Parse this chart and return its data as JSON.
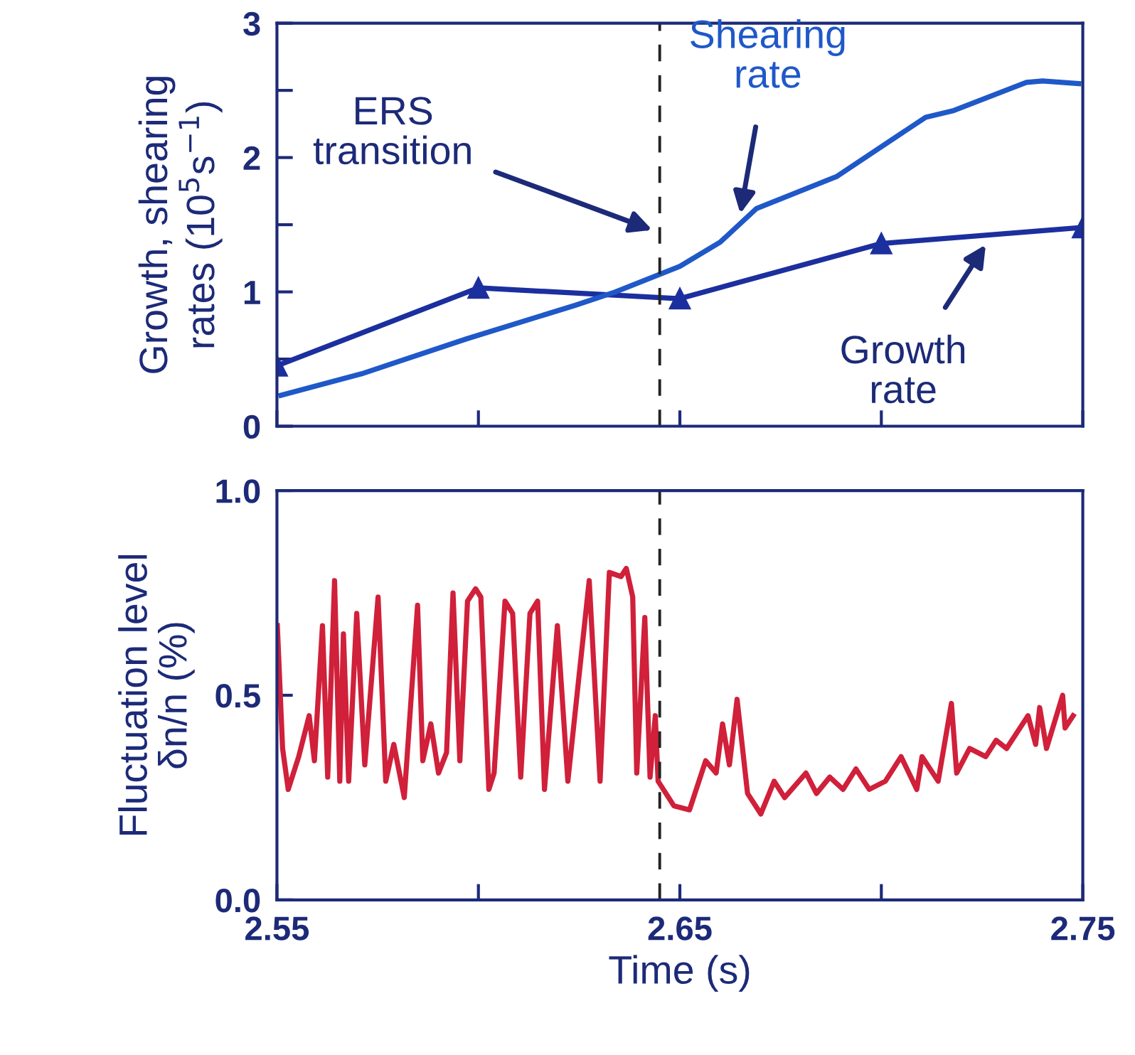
{
  "chart_data": [
    {
      "type": "line",
      "ylabel": "Growth, shearing\nrates (10$^{5}$s$^{−1}$)",
      "xlim": [
        2.55,
        2.75
      ],
      "ylim": [
        0,
        3
      ],
      "xticks": [
        {
          "value": 2.55,
          "label": null
        },
        {
          "value": 2.6,
          "label": null
        },
        {
          "value": 2.65,
          "label": null
        },
        {
          "value": 2.7,
          "label": null
        },
        {
          "value": 2.75,
          "label": null
        }
      ],
      "yticks": [
        0,
        {
          "value": 0.5,
          "label": null
        },
        1,
        {
          "value": 1.5,
          "label": null
        },
        2,
        {
          "value": 2.5,
          "label": null
        },
        3
      ],
      "tick_labels": "y",
      "grid": false,
      "legend": false,
      "series": [
        {
          "name": "Growth\nrate",
          "color": "#1c2f9e",
          "marker": "triangle",
          "x": [
            2.55,
            2.6,
            2.65,
            2.7,
            2.75
          ],
          "values": [
            0.45,
            1.03,
            0.95,
            1.36,
            1.48
          ]
        },
        {
          "name": "Shearing\nrate",
          "color": "#1f58c8",
          "marker": "none",
          "x": [
            2.551,
            2.571,
            2.597,
            2.624,
            2.634,
            2.65,
            2.66,
            2.669,
            2.689,
            2.711,
            2.718,
            2.736,
            2.74,
            2.749
          ],
          "values": [
            0.23,
            0.39,
            0.65,
            0.9,
            1.0,
            1.19,
            1.37,
            1.62,
            1.86,
            2.3,
            2.35,
            2.56,
            2.57,
            2.55
          ]
        }
      ],
      "annotations": [
        "ERS\ntransition"
      ],
      "ref_lines": [
        {
          "axis": "x",
          "value": 2.645,
          "line_style": "dashed",
          "color": "#222222"
        }
      ]
    },
    {
      "type": "line",
      "xlabel": "Time (s)",
      "ylabel": "Fluctuation level\nδn/n (%)",
      "xlim": [
        2.55,
        2.75
      ],
      "ylim": [
        0,
        1
      ],
      "xticks": [
        2.55,
        {
          "value": 2.6,
          "label": null
        },
        2.65,
        {
          "value": 2.7,
          "label": null
        },
        2.75
      ],
      "yticks": [
        {
          "value": 0,
          "label": "0.0"
        },
        0.5,
        {
          "value": 1,
          "label": "1.0"
        }
      ],
      "grid": false,
      "legend": false,
      "series": [
        {
          "color": "#d0203a",
          "marker": "none",
          "x": [
            2.5501,
            2.5514,
            2.5528,
            2.5554,
            2.558,
            2.5593,
            2.5613,
            2.5626,
            2.5643,
            2.5656,
            2.5665,
            2.5678,
            2.5698,
            2.5718,
            2.5751,
            2.577,
            2.579,
            2.5816,
            2.5849,
            2.5862,
            2.5882,
            2.5901,
            2.5921,
            2.5937,
            2.5954,
            2.5973,
            2.5993,
            2.6006,
            2.6026,
            2.6039,
            2.6066,
            2.6085,
            2.6105,
            2.6128,
            2.6147,
            2.6164,
            2.6196,
            2.6222,
            2.6249,
            2.6275,
            2.6302,
            2.6325,
            2.6354,
            2.6367,
            2.6383,
            2.6393,
            2.6413,
            2.6426,
            2.6439,
            2.6446,
            2.6485,
            2.6524,
            2.6564,
            2.659,
            2.6606,
            2.6623,
            2.6642,
            2.6668,
            2.6701,
            2.6734,
            2.676,
            2.6813,
            2.6839,
            2.6872,
            2.6905,
            2.6937,
            2.697,
            2.701,
            2.7049,
            2.7088,
            2.7101,
            2.7141,
            2.7174,
            2.7187,
            2.7219,
            2.7259,
            2.7285,
            2.7311,
            2.7364,
            2.7383,
            2.7393,
            2.741,
            2.745,
            2.7456,
            2.7476
          ],
          "values": [
            0.67,
            0.37,
            0.27,
            0.35,
            0.45,
            0.34,
            0.67,
            0.3,
            0.78,
            0.29,
            0.65,
            0.29,
            0.7,
            0.33,
            0.74,
            0.29,
            0.38,
            0.25,
            0.72,
            0.34,
            0.43,
            0.31,
            0.36,
            0.75,
            0.34,
            0.73,
            0.76,
            0.74,
            0.27,
            0.31,
            0.73,
            0.7,
            0.3,
            0.7,
            0.73,
            0.27,
            0.67,
            0.29,
            0.54,
            0.78,
            0.29,
            0.8,
            0.79,
            0.81,
            0.74,
            0.31,
            0.69,
            0.3,
            0.45,
            0.29,
            0.23,
            0.22,
            0.34,
            0.31,
            0.43,
            0.33,
            0.49,
            0.26,
            0.21,
            0.29,
            0.25,
            0.31,
            0.26,
            0.3,
            0.27,
            0.32,
            0.27,
            0.29,
            0.35,
            0.27,
            0.35,
            0.29,
            0.48,
            0.31,
            0.37,
            0.35,
            0.39,
            0.37,
            0.45,
            0.38,
            0.47,
            0.37,
            0.5,
            0.42,
            0.45
          ]
        }
      ],
      "ref_lines": [
        {
          "axis": "x",
          "value": 2.645,
          "line_style": "dashed",
          "color": "#222222"
        }
      ]
    }
  ]
}
